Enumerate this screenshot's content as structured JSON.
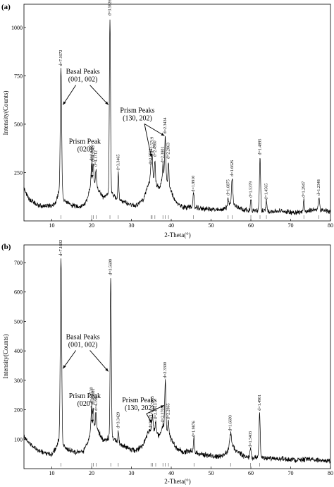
{
  "chart_data": [
    {
      "type": "line",
      "panel_label": "(a)",
      "xlabel": "2-Theta(°)",
      "ylabel": "Intensity(Counts)",
      "xlim": [
        3,
        80
      ],
      "ylim": [
        0,
        1120
      ],
      "xticks": [
        "10",
        "20",
        "30",
        "40",
        "50",
        "60",
        "70",
        "80"
      ],
      "yticks": [
        "250",
        "500",
        "750",
        "1000"
      ],
      "ytick_values": [
        250,
        500,
        750,
        1000
      ],
      "baseline": [
        [
          3,
          170
        ],
        [
          4,
          120
        ],
        [
          6,
          85
        ],
        [
          8,
          75
        ],
        [
          10,
          80
        ],
        [
          11,
          95
        ],
        [
          12,
          170
        ],
        [
          13,
          110
        ],
        [
          14,
          90
        ],
        [
          16,
          75
        ],
        [
          18,
          80
        ],
        [
          19,
          120
        ],
        [
          20,
          200
        ],
        [
          21,
          190
        ],
        [
          22,
          150
        ],
        [
          23,
          120
        ],
        [
          25,
          150
        ],
        [
          26,
          120
        ],
        [
          27,
          110
        ],
        [
          29,
          90
        ],
        [
          31,
          80
        ],
        [
          33,
          110
        ],
        [
          34,
          170
        ],
        [
          35,
          230
        ],
        [
          36,
          200
        ],
        [
          37,
          170
        ],
        [
          38,
          230
        ],
        [
          39,
          200
        ],
        [
          40,
          150
        ],
        [
          41,
          100
        ],
        [
          43,
          70
        ],
        [
          45,
          75
        ],
        [
          47,
          65
        ],
        [
          50,
          60
        ],
        [
          52,
          55
        ],
        [
          54,
          70
        ],
        [
          55,
          90
        ],
        [
          56,
          80
        ],
        [
          58,
          60
        ],
        [
          60,
          50
        ],
        [
          62,
          55
        ],
        [
          64,
          50
        ],
        [
          66,
          50
        ],
        [
          68,
          50
        ],
        [
          70,
          45
        ],
        [
          72,
          45
        ],
        [
          74,
          48
        ],
        [
          76,
          60
        ],
        [
          78,
          55
        ],
        [
          80,
          48
        ]
      ],
      "peaks": [
        {
          "x": 12.3,
          "y": 790,
          "w": 0.35,
          "label": "d=7.1672"
        },
        {
          "x": 20.0,
          "y": 300,
          "w": 0.3,
          "label": "d=4.4385"
        },
        {
          "x": 20.4,
          "y": 295,
          "w": 0.25,
          "label": "d=4.3543"
        },
        {
          "x": 21.1,
          "y": 270,
          "w": 0.25,
          "label": "d=4.1712"
        },
        {
          "x": 24.6,
          "y": 1050,
          "w": 0.3,
          "label": "d=3.5826"
        },
        {
          "x": 26.7,
          "y": 250,
          "w": 0.25,
          "label": "d=3.3465"
        },
        {
          "x": 34.9,
          "y": 280,
          "w": 0.3,
          "label": "d=2.5782"
        },
        {
          "x": 35.2,
          "y": 340,
          "w": 0.3,
          "label": "d=2.5719"
        },
        {
          "x": 35.9,
          "y": 320,
          "w": 0.25,
          "label": "d=2.4960"
        },
        {
          "x": 37.9,
          "y": 290,
          "w": 0.25,
          "label": "d=2.3801"
        },
        {
          "x": 38.5,
          "y": 440,
          "w": 0.3,
          "label": "d=2.3434"
        },
        {
          "x": 39.3,
          "y": 310,
          "w": 0.25,
          "label": "d=2.2863"
        },
        {
          "x": 45.6,
          "y": 140,
          "w": 0.3,
          "label": "d=1.9910"
        },
        {
          "x": 54.3,
          "y": 120,
          "w": 0.3,
          "label": "d=1.6875"
        },
        {
          "x": 55.3,
          "y": 220,
          "w": 0.35,
          "label": "d=1.6626"
        },
        {
          "x": 60.0,
          "y": 110,
          "w": 0.3,
          "label": "d=1.5379"
        },
        {
          "x": 62.3,
          "y": 330,
          "w": 0.3,
          "label": "d=1.4895"
        },
        {
          "x": 63.9,
          "y": 100,
          "w": 0.3,
          "label": "d=1.4565"
        },
        {
          "x": 73.3,
          "y": 110,
          "w": 0.3,
          "label": "d=1.2947"
        },
        {
          "x": 77.1,
          "y": 120,
          "w": 0.3,
          "label": "d=1.2348"
        }
      ],
      "annotations": [
        {
          "lines": [
            "Basal Peaks",
            "(001, 002)"
          ],
          "x": 17.8,
          "y": 760,
          "arrows": [
            [
              12.8,
              600
            ],
            [
              24.2,
              600
            ]
          ]
        },
        {
          "lines": [
            "Prism Peak",
            "(020)"
          ],
          "x": 18.3,
          "y": 400,
          "arrows": [
            [
              20.1,
              220
            ]
          ]
        },
        {
          "lines": [
            "Prism Peaks",
            "(130, 202)"
          ],
          "x": 31.5,
          "y": 560,
          "arrows": [
            [
              35.0,
              330
            ],
            [
              38.3,
              440
            ]
          ]
        }
      ]
    },
    {
      "type": "line",
      "panel_label": "(b)",
      "xlabel": "2-Theta(°)",
      "ylabel": "Intensity(Counts)",
      "xlim": [
        3,
        80
      ],
      "ylim": [
        0,
        760
      ],
      "xticks": [
        "10",
        "20",
        "30",
        "40",
        "50",
        "60",
        "70",
        "80"
      ],
      "yticks": [
        "100",
        "200",
        "300",
        "400",
        "500",
        "600",
        "700"
      ],
      "ytick_values": [
        100,
        200,
        300,
        400,
        500,
        600,
        700
      ],
      "baseline": [
        [
          3,
          110
        ],
        [
          4,
          90
        ],
        [
          6,
          70
        ],
        [
          8,
          55
        ],
        [
          10,
          50
        ],
        [
          11,
          65
        ],
        [
          12,
          110
        ],
        [
          13,
          75
        ],
        [
          14,
          65
        ],
        [
          16,
          55
        ],
        [
          18,
          60
        ],
        [
          19,
          90
        ],
        [
          20,
          140
        ],
        [
          21,
          150
        ],
        [
          22,
          120
        ],
        [
          23,
          95
        ],
        [
          25,
          110
        ],
        [
          26,
          95
        ],
        [
          27,
          85
        ],
        [
          29,
          70
        ],
        [
          31,
          60
        ],
        [
          33,
          80
        ],
        [
          34,
          120
        ],
        [
          35,
          140
        ],
        [
          36,
          130
        ],
        [
          37,
          110
        ],
        [
          38,
          140
        ],
        [
          39,
          130
        ],
        [
          40,
          100
        ],
        [
          41,
          75
        ],
        [
          43,
          55
        ],
        [
          45,
          60
        ],
        [
          47,
          50
        ],
        [
          50,
          45
        ],
        [
          52,
          40
        ],
        [
          54,
          55
        ],
        [
          55,
          90
        ],
        [
          56,
          65
        ],
        [
          58,
          45
        ],
        [
          60,
          35
        ],
        [
          62,
          40
        ],
        [
          64,
          35
        ],
        [
          66,
          35
        ],
        [
          68,
          33
        ],
        [
          70,
          30
        ],
        [
          72,
          30
        ],
        [
          74,
          32
        ],
        [
          76,
          30
        ],
        [
          78,
          28
        ],
        [
          80,
          25
        ]
      ],
      "peaks": [
        {
          "x": 12.3,
          "y": 715,
          "w": 0.35,
          "label": "d=7.1602"
        },
        {
          "x": 20.0,
          "y": 215,
          "w": 0.3,
          "label": "d=4.4530"
        },
        {
          "x": 20.4,
          "y": 210,
          "w": 0.25,
          "label": "d=4.3681"
        },
        {
          "x": 21.1,
          "y": 190,
          "w": 0.25,
          "label": "d=4.1964"
        },
        {
          "x": 24.8,
          "y": 650,
          "w": 0.3,
          "label": "d=3.5699"
        },
        {
          "x": 26.7,
          "y": 130,
          "w": 0.25,
          "label": "d=3.3429"
        },
        {
          "x": 34.9,
          "y": 130,
          "w": 0.3,
          "label": "d=2.5712"
        },
        {
          "x": 35.3,
          "y": 185,
          "w": 0.3,
          "label": "d=2.5555"
        },
        {
          "x": 36.1,
          "y": 160,
          "w": 0.25,
          "label": "d=2.4913"
        },
        {
          "x": 37.9,
          "y": 150,
          "w": 0.25,
          "label": "d=2.3705"
        },
        {
          "x": 38.5,
          "y": 300,
          "w": 0.3,
          "label": "d=2.3300"
        },
        {
          "x": 39.3,
          "y": 160,
          "w": 0.25,
          "label": "d=2.2865"
        },
        {
          "x": 45.7,
          "y": 100,
          "w": 0.3,
          "label": "d=1.9876"
        },
        {
          "x": 54.9,
          "y": 120,
          "w": 0.4,
          "label": "d=1.6693"
        },
        {
          "x": 59.9,
          "y": 65,
          "w": 0.3,
          "label": "d=1.5403"
        },
        {
          "x": 62.2,
          "y": 190,
          "w": 0.3,
          "label": "d=1.4901"
        }
      ],
      "annotations": [
        {
          "lines": [
            "Basal Peaks",
            "(001, 002)"
          ],
          "x": 17.8,
          "y": 440,
          "arrows": [
            [
              12.8,
              340
            ],
            [
              24.2,
              330
            ]
          ]
        },
        {
          "lines": [
            "Prism Peak",
            "(020)"
          ],
          "x": 18.3,
          "y": 240,
          "arrows": [
            [
              20.2,
              155
            ]
          ]
        },
        {
          "lines": [
            "Prism Peaks",
            "(130, 202)"
          ],
          "x": 32.0,
          "y": 225,
          "arrows": [
            [
              35.1,
              155
            ],
            [
              38.2,
              215
            ]
          ]
        }
      ]
    }
  ]
}
